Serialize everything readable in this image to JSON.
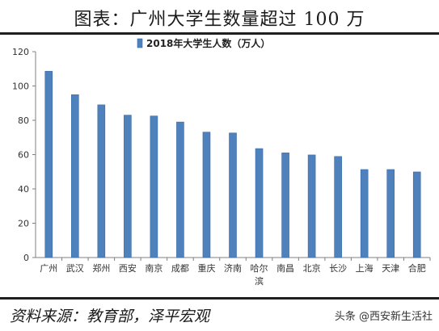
{
  "title": "图表：广州大学生数量超过 100 万",
  "source": "资料来源：教育部，泽平宏观",
  "watermark": "头条 @西安新生活社",
  "colors": {
    "bar": "#4f81bd",
    "bar_edge": "#3a6aa5",
    "axis": "#7f7f7f"
  },
  "chart_data": {
    "type": "bar",
    "legend_position": "top-center",
    "grid": false,
    "ylim": [
      0,
      120
    ],
    "yticks": [
      0,
      20,
      40,
      60,
      80,
      100,
      120
    ],
    "categories": [
      "广州",
      "武汉",
      "郑州",
      "西安",
      "南京",
      "成都",
      "重庆",
      "济南",
      "哈尔滨",
      "南昌",
      "北京",
      "长沙",
      "上海",
      "天津",
      "合肥"
    ],
    "series": [
      {
        "name": "2018年大学生人数（万人）",
        "values": [
          108.6,
          94.9,
          89.0,
          83.0,
          82.5,
          79.0,
          73.1,
          72.6,
          63.5,
          61.0,
          59.8,
          58.9,
          51.3,
          51.3,
          49.9
        ]
      }
    ]
  }
}
